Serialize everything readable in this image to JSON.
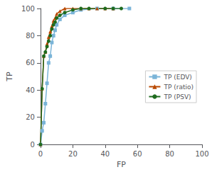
{
  "chart_data": {
    "type": "line",
    "xlabel": "FP",
    "ylabel": "TP",
    "series": [
      {
        "name": "TP (EDV)",
        "color": "#7ab4d8",
        "marker": "square",
        "x": [
          0,
          1,
          2,
          3,
          4,
          5,
          6,
          7,
          8,
          9,
          10,
          12,
          15,
          20,
          25,
          35,
          45,
          55
        ],
        "values": [
          0,
          10,
          16,
          30,
          45,
          60,
          65,
          75,
          80,
          84,
          88,
          92,
          95,
          97,
          99,
          100,
          100,
          100
        ]
      },
      {
        "name": "TP (ratio)",
        "color": "#b84800",
        "marker": "triangle",
        "x": [
          0,
          1,
          2,
          3,
          4,
          5,
          6,
          7,
          8,
          9,
          10,
          12,
          15,
          20,
          25,
          30,
          35,
          40,
          45
        ],
        "values": [
          0,
          41,
          65,
          68,
          74,
          79,
          83,
          87,
          91,
          93,
          96,
          98,
          100,
          100,
          100,
          100,
          100,
          100,
          100
        ]
      },
      {
        "name": "TP (PSV)",
        "color": "#1e6b1e",
        "marker": "circle",
        "x": [
          0,
          1,
          2,
          3,
          4,
          5,
          6,
          7,
          8,
          9,
          10,
          12,
          15,
          20,
          25,
          30,
          40,
          45,
          50
        ],
        "values": [
          0,
          41,
          65,
          68,
          72,
          76,
          80,
          85,
          88,
          90,
          93,
          95,
          97,
          99,
          100,
          100,
          100,
          100,
          100
        ]
      }
    ],
    "xlim": [
      0,
      100
    ],
    "ylim": [
      0,
      100
    ],
    "xticks": [
      0,
      20,
      40,
      60,
      80,
      100
    ],
    "yticks": [
      0,
      20,
      40,
      60,
      80,
      100
    ],
    "grid": false,
    "legend": "right"
  }
}
